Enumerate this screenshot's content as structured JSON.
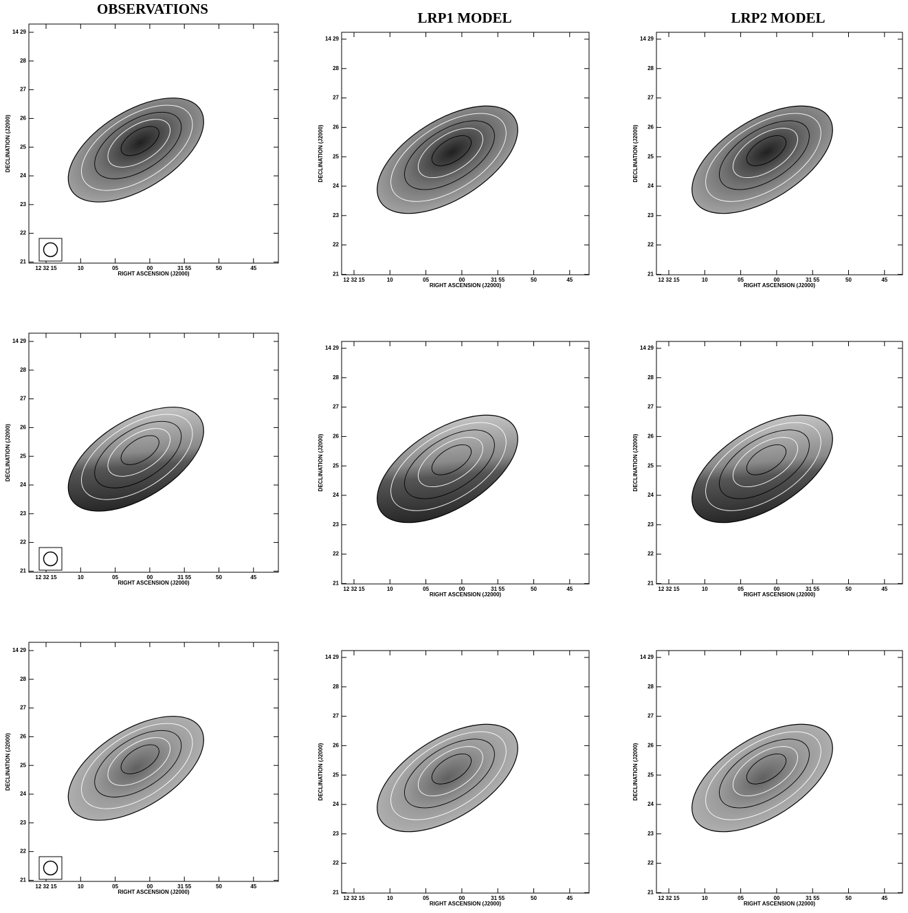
{
  "columns": [
    {
      "title": "OBSERVATIONS"
    },
    {
      "title": "LRP1 MODEL"
    },
    {
      "title": "LRP2 MODEL"
    }
  ],
  "axes": {
    "x_label": "RIGHT ASCENSION (J2000)",
    "y_label": "DECLINATION (J2000)",
    "x_ticks": [
      "12 32 15",
      "10",
      "05",
      "00",
      "31 55",
      "50",
      "45"
    ],
    "y_ticks": [
      "14 29",
      "28",
      "27",
      "26",
      "25",
      "24",
      "23",
      "22",
      "21"
    ]
  }
}
